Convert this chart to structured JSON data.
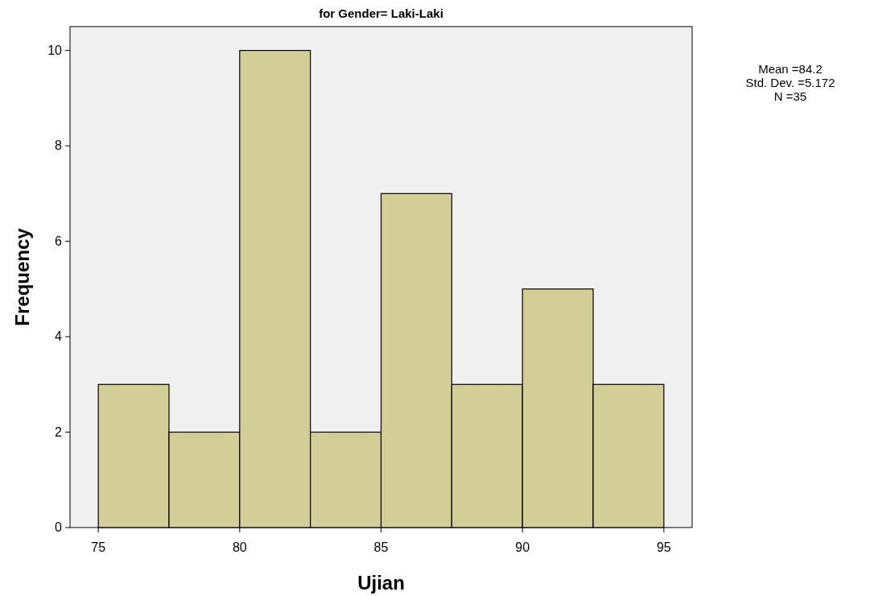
{
  "chart_data": {
    "type": "histogram",
    "title": "for Gender= Laki-Laki",
    "xlabel": "Ujian",
    "ylabel": "Frequency",
    "bins": [
      75,
      77.5,
      80,
      82.5,
      85,
      87.5,
      90,
      92.5,
      95
    ],
    "values": [
      3,
      2,
      10,
      2,
      7,
      3,
      5,
      3
    ],
    "color": "#d3ce98",
    "xlim": [
      74,
      96
    ],
    "xticks": [
      75,
      80,
      85,
      90,
      95
    ],
    "ylim": [
      0,
      10.5
    ],
    "yticks": [
      0,
      2,
      4,
      6,
      8,
      10
    ],
    "annotations": [
      "Mean =84.2",
      "Std. Dev. =5.172",
      "N =35"
    ]
  }
}
